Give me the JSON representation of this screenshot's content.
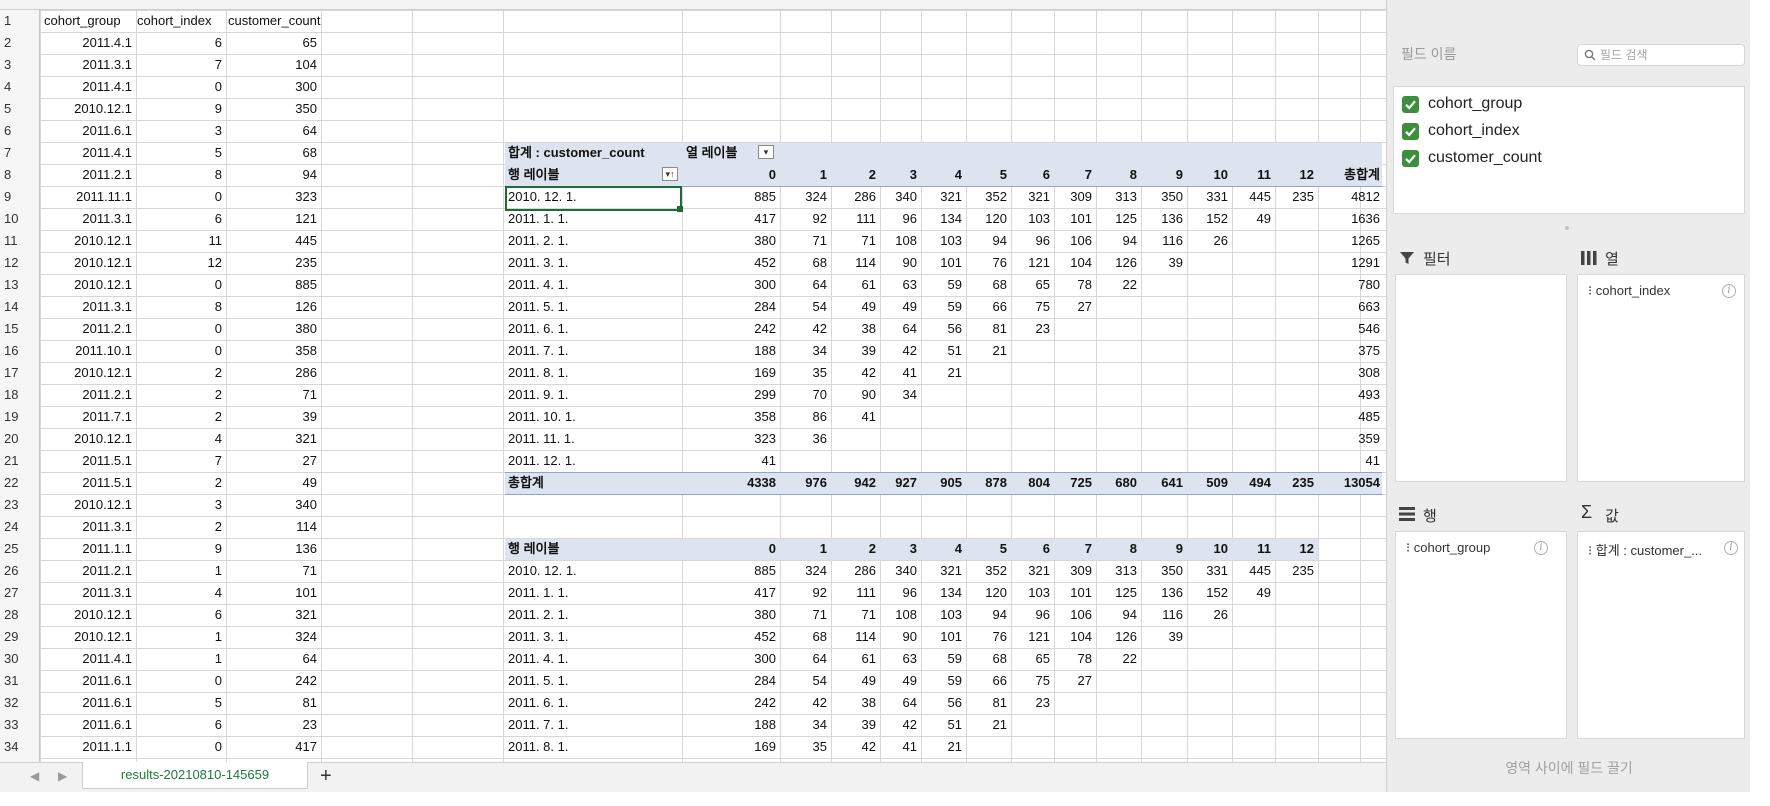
{
  "source_table": {
    "headers": [
      "cohort_group",
      "cohort_index",
      "customer_count"
    ],
    "rows": [
      [
        "2011.4.1",
        "6",
        "65"
      ],
      [
        "2011.3.1",
        "7",
        "104"
      ],
      [
        "2011.4.1",
        "0",
        "300"
      ],
      [
        "2010.12.1",
        "9",
        "350"
      ],
      [
        "2011.6.1",
        "3",
        "64"
      ],
      [
        "2011.4.1",
        "5",
        "68"
      ],
      [
        "2011.2.1",
        "8",
        "94"
      ],
      [
        "2011.11.1",
        "0",
        "323"
      ],
      [
        "2011.3.1",
        "6",
        "121"
      ],
      [
        "2010.12.1",
        "11",
        "445"
      ],
      [
        "2010.12.1",
        "12",
        "235"
      ],
      [
        "2010.12.1",
        "0",
        "885"
      ],
      [
        "2011.3.1",
        "8",
        "126"
      ],
      [
        "2011.2.1",
        "0",
        "380"
      ],
      [
        "2011.10.1",
        "0",
        "358"
      ],
      [
        "2010.12.1",
        "2",
        "286"
      ],
      [
        "2011.2.1",
        "2",
        "71"
      ],
      [
        "2011.7.1",
        "2",
        "39"
      ],
      [
        "2010.12.1",
        "4",
        "321"
      ],
      [
        "2011.5.1",
        "7",
        "27"
      ],
      [
        "2011.5.1",
        "2",
        "49"
      ],
      [
        "2010.12.1",
        "3",
        "340"
      ],
      [
        "2011.3.1",
        "2",
        "114"
      ],
      [
        "2011.1.1",
        "9",
        "136"
      ],
      [
        "2011.2.1",
        "1",
        "71"
      ],
      [
        "2011.3.1",
        "4",
        "101"
      ],
      [
        "2010.12.1",
        "6",
        "321"
      ],
      [
        "2010.12.1",
        "1",
        "324"
      ],
      [
        "2011.4.1",
        "1",
        "64"
      ],
      [
        "2011.6.1",
        "0",
        "242"
      ],
      [
        "2011.6.1",
        "5",
        "81"
      ],
      [
        "2011.6.1",
        "6",
        "23"
      ],
      [
        "2011.1.1",
        "0",
        "417"
      ]
    ]
  },
  "pivot": {
    "corner_label": "합계 : customer_count",
    "col_labels_title": "열 레이블",
    "row_labels_title": "행 레이블",
    "grand_total_label": "총합계",
    "col_headers": [
      "0",
      "1",
      "2",
      "3",
      "4",
      "5",
      "6",
      "7",
      "8",
      "9",
      "10",
      "11",
      "12"
    ],
    "rows": [
      {
        "label": "2010. 12. 1.",
        "values": [
          "885",
          "324",
          "286",
          "340",
          "321",
          "352",
          "321",
          "309",
          "313",
          "350",
          "331",
          "445",
          "235"
        ],
        "total": "4812"
      },
      {
        "label": "2011. 1. 1.",
        "values": [
          "417",
          "92",
          "111",
          "96",
          "134",
          "120",
          "103",
          "101",
          "125",
          "136",
          "152",
          "49",
          ""
        ],
        "total": "1636"
      },
      {
        "label": "2011. 2. 1.",
        "values": [
          "380",
          "71",
          "71",
          "108",
          "103",
          "94",
          "96",
          "106",
          "94",
          "116",
          "26",
          "",
          ""
        ],
        "total": "1265"
      },
      {
        "label": "2011. 3. 1.",
        "values": [
          "452",
          "68",
          "114",
          "90",
          "101",
          "76",
          "121",
          "104",
          "126",
          "39",
          "",
          "",
          ""
        ],
        "total": "1291"
      },
      {
        "label": "2011. 4. 1.",
        "values": [
          "300",
          "64",
          "61",
          "63",
          "59",
          "68",
          "65",
          "78",
          "22",
          "",
          "",
          "",
          ""
        ],
        "total": "780"
      },
      {
        "label": "2011. 5. 1.",
        "values": [
          "284",
          "54",
          "49",
          "49",
          "59",
          "66",
          "75",
          "27",
          "",
          "",
          "",
          "",
          ""
        ],
        "total": "663"
      },
      {
        "label": "2011. 6. 1.",
        "values": [
          "242",
          "42",
          "38",
          "64",
          "56",
          "81",
          "23",
          "",
          "",
          "",
          "",
          "",
          ""
        ],
        "total": "546"
      },
      {
        "label": "2011. 7. 1.",
        "values": [
          "188",
          "34",
          "39",
          "42",
          "51",
          "21",
          "",
          "",
          "",
          "",
          "",
          "",
          ""
        ],
        "total": "375"
      },
      {
        "label": "2011. 8. 1.",
        "values": [
          "169",
          "35",
          "42",
          "41",
          "21",
          "",
          "",
          "",
          "",
          "",
          "",
          "",
          ""
        ],
        "total": "308"
      },
      {
        "label": "2011. 9. 1.",
        "values": [
          "299",
          "70",
          "90",
          "34",
          "",
          "",
          "",
          "",
          "",
          "",
          "",
          "",
          ""
        ],
        "total": "493"
      },
      {
        "label": "2011. 10. 1.",
        "values": [
          "358",
          "86",
          "41",
          "",
          "",
          "",
          "",
          "",
          "",
          "",
          "",
          "",
          ""
        ],
        "total": "485"
      },
      {
        "label": "2011. 11. 1.",
        "values": [
          "323",
          "36",
          "",
          "",
          "",
          "",
          "",
          "",
          "",
          "",
          "",
          "",
          ""
        ],
        "total": "359"
      },
      {
        "label": "2011. 12. 1.",
        "values": [
          "41",
          "",
          "",
          "",
          "",
          "",
          "",
          "",
          "",
          "",
          "",
          "",
          ""
        ],
        "total": "41"
      }
    ],
    "grand_totals": [
      "4338",
      "976",
      "942",
      "927",
      "905",
      "878",
      "804",
      "725",
      "680",
      "641",
      "509",
      "494",
      "235"
    ],
    "grand_total_value": "13054"
  },
  "copy_table": {
    "row_labels_title": "행 레이블",
    "col_headers": [
      "0",
      "1",
      "2",
      "3",
      "4",
      "5",
      "6",
      "7",
      "8",
      "9",
      "10",
      "11",
      "12"
    ],
    "rows": [
      {
        "label": "2010. 12. 1.",
        "values": [
          "885",
          "324",
          "286",
          "340",
          "321",
          "352",
          "321",
          "309",
          "313",
          "350",
          "331",
          "445",
          "235"
        ]
      },
      {
        "label": "2011. 1. 1.",
        "values": [
          "417",
          "92",
          "111",
          "96",
          "134",
          "120",
          "103",
          "101",
          "125",
          "136",
          "152",
          "49",
          ""
        ]
      },
      {
        "label": "2011. 2. 1.",
        "values": [
          "380",
          "71",
          "71",
          "108",
          "103",
          "94",
          "96",
          "106",
          "94",
          "116",
          "26",
          "",
          ""
        ]
      },
      {
        "label": "2011. 3. 1.",
        "values": [
          "452",
          "68",
          "114",
          "90",
          "101",
          "76",
          "121",
          "104",
          "126",
          "39",
          "",
          "",
          ""
        ]
      },
      {
        "label": "2011. 4. 1.",
        "values": [
          "300",
          "64",
          "61",
          "63",
          "59",
          "68",
          "65",
          "78",
          "22",
          "",
          "",
          "",
          ""
        ]
      },
      {
        "label": "2011. 5. 1.",
        "values": [
          "284",
          "54",
          "49",
          "49",
          "59",
          "66",
          "75",
          "27",
          "",
          "",
          "",
          "",
          ""
        ]
      },
      {
        "label": "2011. 6. 1.",
        "values": [
          "242",
          "42",
          "38",
          "64",
          "56",
          "81",
          "23",
          "",
          "",
          "",
          "",
          "",
          ""
        ]
      },
      {
        "label": "2011. 7. 1.",
        "values": [
          "188",
          "34",
          "39",
          "42",
          "51",
          "21",
          "",
          "",
          "",
          "",
          "",
          "",
          ""
        ]
      },
      {
        "label": "2011. 8. 1.",
        "values": [
          "169",
          "35",
          "42",
          "41",
          "21",
          "",
          "",
          "",
          "",
          "",
          "",
          "",
          ""
        ]
      }
    ]
  },
  "row_numbers": [
    "1",
    "2",
    "3",
    "4",
    "5",
    "6",
    "7",
    "8",
    "9",
    "10",
    "11",
    "12",
    "13",
    "14",
    "15",
    "16",
    "17",
    "18",
    "19",
    "20",
    "21",
    "22",
    "23",
    "24",
    "25",
    "26",
    "27",
    "28",
    "29",
    "30",
    "31",
    "32",
    "33",
    "34"
  ],
  "sheet_tab": {
    "name": "results-20210810-145659",
    "add_label": "+",
    "prev_icon": "◀",
    "next_icon": "▶"
  },
  "field_panel": {
    "field_name_label": "필드 이름",
    "search_placeholder": "필드 검색",
    "fields": [
      "cohort_group",
      "cohort_index",
      "customer_count"
    ],
    "filters_label": "필터",
    "columns_label": "열",
    "rows_label": "행",
    "values_label": "값",
    "columns_field": "cohort_index",
    "rows_field": "cohort_group",
    "values_field": "합계 : customer_...",
    "drag_hint": "영역 사이에 필드 끌기"
  },
  "colors": {
    "pivot_band": "#dde4f0",
    "check_green": "#3d8f3d",
    "selection": "#1e6b35",
    "tab_text": "#1d7a40"
  }
}
